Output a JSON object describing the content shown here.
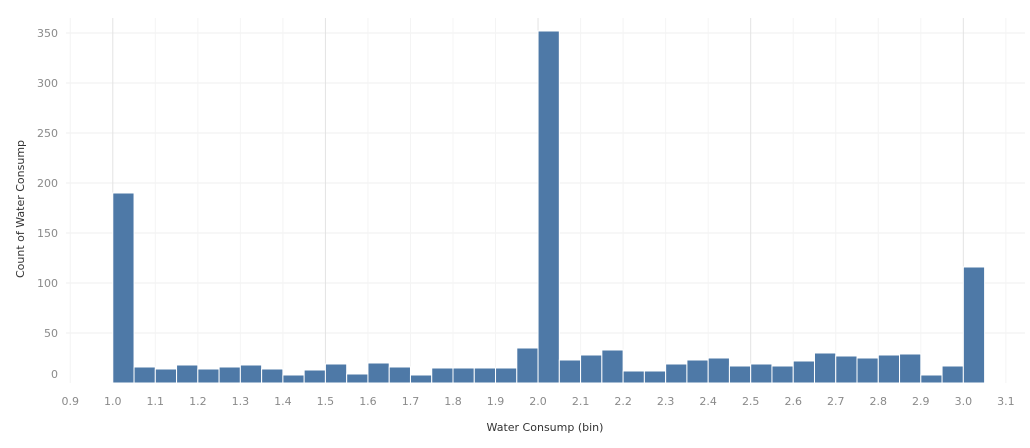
{
  "chart_data": {
    "type": "bar",
    "xlabel": "Water Consump (bin)",
    "ylabel": "Count of Water Consump",
    "bin_width": 0.05,
    "bin_starts": [
      1.0,
      1.05,
      1.1,
      1.15,
      1.2,
      1.25,
      1.3,
      1.35,
      1.4,
      1.45,
      1.5,
      1.55,
      1.6,
      1.65,
      1.7,
      1.75,
      1.8,
      1.85,
      1.9,
      1.95,
      2.0,
      2.05,
      2.1,
      2.15,
      2.2,
      2.25,
      2.3,
      2.35,
      2.4,
      2.45,
      2.5,
      2.55,
      2.6,
      2.65,
      2.7,
      2.75,
      2.8,
      2.85,
      2.9,
      2.95,
      3.0
    ],
    "values": [
      190,
      16,
      14,
      18,
      14,
      16,
      18,
      14,
      8,
      13,
      19,
      9,
      20,
      16,
      8,
      15,
      15,
      15,
      15,
      35,
      352,
      23,
      28,
      33,
      12,
      12,
      19,
      23,
      25,
      17,
      19,
      17,
      22,
      30,
      27,
      25,
      28,
      29,
      8,
      17,
      116
    ],
    "x_ticks": [
      "0.9",
      "1.0",
      "1.1",
      "1.2",
      "1.3",
      "1.4",
      "1.5",
      "1.6",
      "1.7",
      "1.8",
      "1.9",
      "2.0",
      "2.1",
      "2.2",
      "2.3",
      "2.4",
      "2.5",
      "2.6",
      "2.7",
      "2.8",
      "2.9",
      "3.0",
      "3.1"
    ],
    "y_ticks": [
      0,
      50,
      100,
      150,
      200,
      250,
      300,
      350
    ],
    "xlim": [
      0.89,
      3.145
    ],
    "ylim": [
      0,
      365
    ],
    "bar_color": "#4e79a7",
    "grid": true
  }
}
